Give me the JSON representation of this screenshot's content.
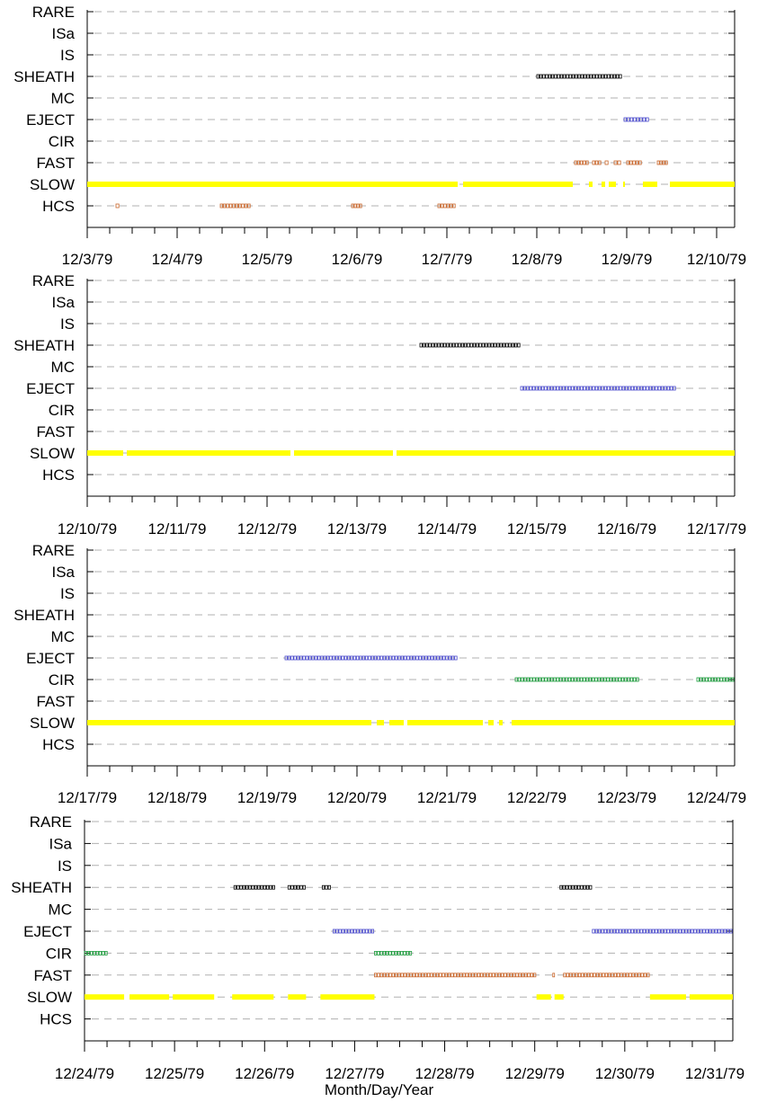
{
  "x_axis_title": "Month/Day/Year",
  "categories": [
    "RARE",
    "ISa",
    "IS",
    "SHEATH",
    "MC",
    "EJECT",
    "CIR",
    "FAST",
    "SLOW",
    "HCS"
  ],
  "series_colors": {
    "SHEATH": "#000000",
    "EJECT": "#4a4acc",
    "CIR": "#1a9a3a",
    "FAST": "#c86428",
    "HCS": "#c86428",
    "SLOW": "#ffff00"
  },
  "chart_data": [
    {
      "type": "timeline",
      "x_start": "12/3/79",
      "x_ticks": [
        "12/3/79",
        "12/4/79",
        "12/5/79",
        "12/6/79",
        "12/7/79",
        "12/8/79",
        "12/9/79",
        "12/10/79"
      ],
      "intervals": {
        "SHEATH": [
          [
            5.0,
            5.95
          ]
        ],
        "EJECT": [
          [
            5.97,
            6.25
          ]
        ],
        "FAST": [
          [
            5.42,
            5.58
          ],
          [
            5.62,
            5.72
          ],
          [
            5.76,
            5.8
          ],
          [
            5.86,
            5.94
          ],
          [
            6.0,
            6.17
          ],
          [
            6.34,
            6.46
          ]
        ],
        "SLOW": [
          [
            0.0,
            4.12
          ],
          [
            4.18,
            5.4
          ],
          [
            5.58,
            5.62
          ],
          [
            5.72,
            5.76
          ],
          [
            5.8,
            5.88
          ],
          [
            5.96,
            5.98
          ],
          [
            6.18,
            6.34
          ],
          [
            6.48,
            7.2
          ]
        ],
        "HCS": [
          [
            0.32,
            0.36
          ],
          [
            1.48,
            1.82
          ],
          [
            2.94,
            3.06
          ],
          [
            3.9,
            4.1
          ]
        ]
      }
    },
    {
      "type": "timeline",
      "x_start": "12/10/79",
      "x_ticks": [
        "12/10/79",
        "12/11/79",
        "12/12/79",
        "12/13/79",
        "12/14/79",
        "12/15/79",
        "12/16/79",
        "12/17/79"
      ],
      "intervals": {
        "SHEATH": [
          [
            3.7,
            4.82
          ]
        ],
        "EJECT": [
          [
            4.82,
            6.55
          ]
        ],
        "SLOW": [
          [
            0.0,
            0.4
          ],
          [
            0.44,
            2.26
          ],
          [
            2.3,
            3.4
          ],
          [
            3.44,
            7.2
          ]
        ]
      }
    },
    {
      "type": "timeline",
      "x_start": "12/17/79",
      "x_ticks": [
        "12/17/79",
        "12/18/79",
        "12/19/79",
        "12/20/79",
        "12/21/79",
        "12/22/79",
        "12/23/79",
        "12/24/79"
      ],
      "intervals": {
        "EJECT": [
          [
            2.2,
            4.12
          ]
        ],
        "CIR": [
          [
            4.76,
            6.14
          ],
          [
            6.78,
            7.2
          ]
        ],
        "SLOW": [
          [
            0.0,
            3.16
          ],
          [
            3.22,
            3.3
          ],
          [
            3.36,
            3.52
          ],
          [
            3.56,
            4.4
          ],
          [
            4.46,
            4.52
          ],
          [
            4.58,
            4.62
          ],
          [
            4.72,
            7.2
          ]
        ]
      }
    },
    {
      "type": "timeline",
      "x_start": "12/24/79",
      "x_ticks": [
        "12/24/79",
        "12/25/79",
        "12/26/79",
        "12/27/79",
        "12/28/79",
        "12/29/79",
        "12/30/79",
        "12/31/79"
      ],
      "intervals": {
        "SHEATH": [
          [
            1.66,
            2.12
          ],
          [
            2.26,
            2.46
          ],
          [
            2.64,
            2.74
          ],
          [
            5.28,
            5.64
          ]
        ],
        "EJECT": [
          [
            2.76,
            3.22
          ],
          [
            5.64,
            7.2
          ]
        ],
        "CIR": [
          [
            0.0,
            0.26
          ],
          [
            3.22,
            3.64
          ]
        ],
        "FAST": [
          [
            3.22,
            5.02
          ],
          [
            5.2,
            5.22
          ],
          [
            5.32,
            6.28
          ]
        ],
        "SLOW": [
          [
            0.0,
            0.44
          ],
          [
            0.5,
            0.94
          ],
          [
            0.98,
            1.44
          ],
          [
            1.64,
            2.1
          ],
          [
            2.26,
            2.46
          ],
          [
            2.62,
            3.22
          ],
          [
            5.02,
            5.18
          ],
          [
            5.22,
            5.32
          ],
          [
            6.28,
            6.68
          ],
          [
            6.72,
            7.2
          ]
        ]
      }
    }
  ]
}
